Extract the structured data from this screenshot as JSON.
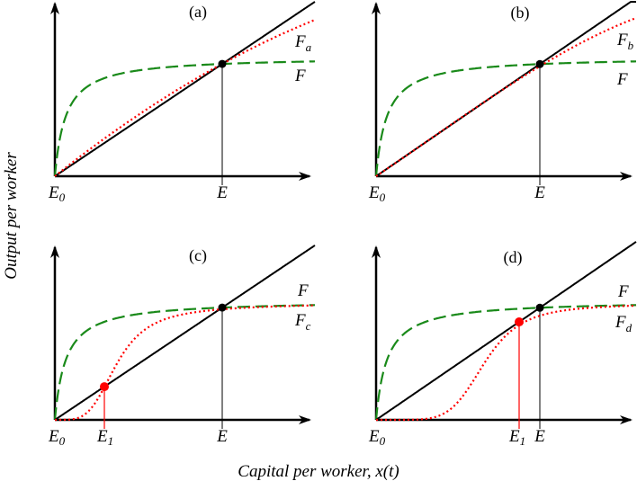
{
  "axes": {
    "ylabel": "Output per worker",
    "xlabel": "Capital per worker, x(t)"
  },
  "colors": {
    "line": "#000000",
    "F": "#1a8a1a",
    "alt": "#ff0000",
    "equilibrium": "#000000",
    "unstable": "#ff0000"
  },
  "panels": [
    {
      "title": "(a)",
      "curve_label": {
        "main": "F",
        "sub": "a"
      },
      "base_label": "F",
      "origin_label": {
        "main": "E",
        "sub": "0"
      },
      "eq_label": "E"
    },
    {
      "title": "(b)",
      "curve_label": {
        "main": "F",
        "sub": "b"
      },
      "base_label": "F",
      "origin_label": {
        "main": "E",
        "sub": "0"
      },
      "eq_label": "E"
    },
    {
      "title": "(c)",
      "curve_label": {
        "main": "F",
        "sub": "c"
      },
      "base_label": "F",
      "origin_label": {
        "main": "E",
        "sub": "0"
      },
      "eq_label": "E",
      "e1_label": {
        "main": "E",
        "sub": "1"
      }
    },
    {
      "title": "(d)",
      "curve_label": {
        "main": "F",
        "sub": "d"
      },
      "base_label": "F",
      "origin_label": {
        "main": "E",
        "sub": "0"
      },
      "eq_label": "E",
      "e1_label": {
        "main": "E",
        "sub": "1"
      }
    }
  ]
}
